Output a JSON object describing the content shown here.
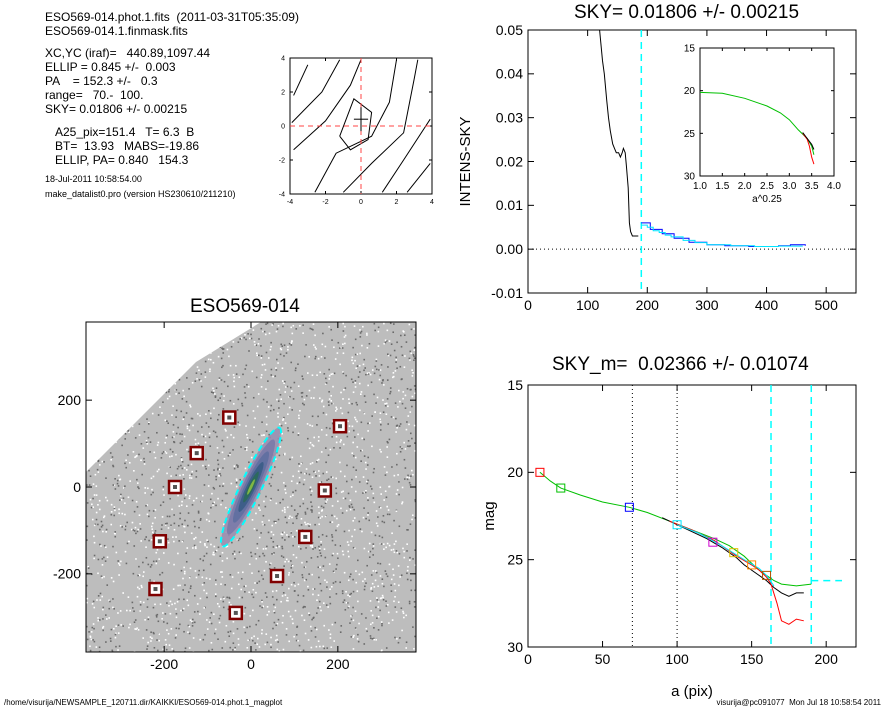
{
  "header": {
    "file_line": "ESO569-014.phot.1.fits  (2011-03-31T05:35:09)",
    "mask_line": "ESO569-014.1.finmask.fits",
    "xcyc": "XC,YC (iraf)=   440.89,1097.44",
    "ellip": "ELLIP = 0.845 +/-  0.003",
    "pa": "PA    = 152.3 +/-   0.3",
    "range": "range=   70.-  100.",
    "sky": "SKY= 0.01806 +/- 0.00215",
    "a25": "A25_pix=151.4   T= 6.3  B",
    "bt": "BT=  13.93   MABS=-19.86",
    "ellip_pa": "ELLIP, PA= 0.840   154.3",
    "date": "18-Jul-2011 10:58:54.00",
    "program": "make_datalist0.pro (version HS230610/211210)"
  },
  "footer": {
    "left": "/home/visurija/NEWSAMPLE_120711.dir/KAIKKI/ESO569-014.phot.1_magplot",
    "right": "visurija@pc091077  Mon Jul 18 10:58:54 2011"
  },
  "colors": {
    "sky_line": "#00ffff",
    "profile_black": "#000000",
    "profile_green": "#00cc00",
    "profile_red": "#ff0000",
    "profile_blue": "#0000ff",
    "marker_red": "#800000"
  },
  "chart_data": [
    {
      "type": "line",
      "panel": "contour-inset",
      "xlim": [
        -4,
        4
      ],
      "ylim": [
        -4,
        4
      ],
      "xticks": [
        "-4",
        "-2",
        "0",
        "2",
        "4"
      ],
      "yticks": [
        "-4",
        "-2",
        "0",
        "2",
        "4"
      ]
    },
    {
      "type": "line",
      "panel": "intensity-profile",
      "title": "SKY= 0.01806 +/- 0.00215",
      "ylabel": "INTENS-SKY",
      "xlim": [
        0,
        550
      ],
      "ylim": [
        -0.01,
        0.05
      ],
      "xticks": [
        "0",
        "100",
        "200",
        "300",
        "400",
        "500"
      ],
      "yticks": [
        "-0.01",
        "0.00",
        "0.01",
        "0.02",
        "0.03",
        "0.04",
        "0.05"
      ],
      "sky_radius": 190,
      "series": [
        {
          "color": "black",
          "x": [
            120,
            125,
            128,
            132,
            135,
            138,
            142,
            145,
            148,
            150,
            152,
            155,
            158,
            160,
            163,
            165,
            168,
            170,
            172,
            175,
            178,
            180,
            185
          ],
          "y": [
            0.05,
            0.043,
            0.04,
            0.034,
            0.03,
            0.027,
            0.024,
            0.023,
            0.022,
            0.022,
            0.022,
            0.021,
            0.022,
            0.023,
            0.022,
            0.019,
            0.014,
            0.006,
            0.004,
            0.003,
            0.003,
            0.003,
            0.003
          ]
        },
        {
          "color": "blue",
          "x": [
            190,
            195,
            205,
            215,
            225,
            235,
            245,
            255,
            270,
            285,
            300,
            330,
            350,
            370,
            400,
            420,
            440,
            465
          ],
          "y": [
            0.006,
            0.006,
            0.0045,
            0.0045,
            0.0035,
            0.0035,
            0.0025,
            0.0025,
            0.0016,
            0.0016,
            0.001,
            0.0008,
            0.0008,
            0.0006,
            0.0006,
            0.0008,
            0.001,
            0.0008
          ]
        },
        {
          "color": "cyan",
          "x": [
            190,
            200,
            210,
            220,
            230,
            240,
            260,
            280,
            300,
            340,
            380,
            420,
            460
          ],
          "y": [
            0.0055,
            0.005,
            0.0042,
            0.0038,
            0.0032,
            0.0028,
            0.002,
            0.0015,
            0.001,
            0.0008,
            0.0006,
            0.0007,
            0.0008
          ]
        }
      ],
      "inset": {
        "xlabel": "a^0.25",
        "xlim": [
          1.0,
          4.0
        ],
        "ylim": [
          15,
          30
        ],
        "xticks": [
          "1.0",
          "1.5",
          "2.0",
          "2.5",
          "3.0",
          "3.5",
          "4.0"
        ],
        "yticks": [
          "15",
          "20",
          "25",
          "30"
        ],
        "series": [
          {
            "color": "green",
            "x": [
              1.0,
              1.5,
              2.0,
              2.5,
              2.8,
              3.0,
              3.2,
              3.4,
              3.5,
              3.55
            ],
            "y": [
              20.2,
              20.3,
              20.9,
              21.8,
              22.6,
              23.4,
              24.6,
              25.6,
              26.5,
              27.5
            ]
          },
          {
            "color": "red",
            "x": [
              3.3,
              3.4,
              3.45,
              3.5,
              3.55
            ],
            "y": [
              25.0,
              25.7,
              26.5,
              27.8,
              28.6
            ]
          },
          {
            "color": "black",
            "x": [
              3.3,
              3.4,
              3.5,
              3.55
            ],
            "y": [
              24.9,
              25.6,
              26.3,
              26.9
            ]
          }
        ]
      }
    },
    {
      "type": "scatter",
      "panel": "galaxy-image",
      "title": "ESO569-014",
      "xlim": [
        -380,
        380
      ],
      "ylim": [
        -380,
        380
      ],
      "xticks": [
        "-200",
        "0",
        "200"
      ],
      "yticks": [
        "-200",
        "0",
        "200"
      ],
      "ellipse": {
        "x": 0,
        "y": 0,
        "semi_major": 151.4,
        "ellipticity": 0.84,
        "pa_deg": 154.3
      },
      "star_markers": [
        {
          "x": -50,
          "y": 160
        },
        {
          "x": 205,
          "y": 140
        },
        {
          "x": -125,
          "y": 78
        },
        {
          "x": -175,
          "y": 0
        },
        {
          "x": 170,
          "y": -8
        },
        {
          "x": -210,
          "y": -125
        },
        {
          "x": 125,
          "y": -115
        },
        {
          "x": 60,
          "y": -205
        },
        {
          "x": -220,
          "y": -235
        },
        {
          "x": -35,
          "y": -290
        }
      ]
    },
    {
      "type": "line",
      "panel": "magnitude-profile",
      "title": "SKY_m=  0.02366 +/- 0.01074",
      "xlabel": "a (pix)",
      "ylabel": "mag",
      "xlim": [
        0,
        220
      ],
      "ylim": [
        30,
        15
      ],
      "xticks": [
        "0",
        "50",
        "100",
        "150",
        "200"
      ],
      "yticks": [
        "15",
        "20",
        "25",
        "30"
      ],
      "dotted_x": [
        70,
        100
      ],
      "dashed_x": [
        163,
        190
      ],
      "sky_mag": 26.2,
      "series": [
        {
          "color": "green",
          "x": [
            8,
            15,
            22,
            35,
            50,
            68,
            80,
            95,
            110,
            125,
            135,
            145,
            150,
            155,
            160,
            165,
            170,
            180,
            190
          ],
          "y": [
            20.0,
            20.5,
            20.9,
            21.3,
            21.7,
            22.0,
            22.3,
            22.8,
            23.3,
            23.8,
            24.2,
            24.8,
            25.2,
            25.6,
            25.9,
            26.2,
            26.4,
            26.5,
            26.4
          ]
        },
        {
          "color": "black",
          "x": [
            90,
            100,
            110,
            120,
            130,
            140,
            145,
            150,
            155,
            160,
            165,
            170,
            175,
            180,
            185
          ],
          "y": [
            22.6,
            23.0,
            23.4,
            23.8,
            24.3,
            24.9,
            25.3,
            25.6,
            25.9,
            26.2,
            26.6,
            26.9,
            27.1,
            26.9,
            26.9
          ]
        },
        {
          "color": "red",
          "x": [
            95,
            110,
            125,
            140,
            150,
            155,
            160,
            163,
            167,
            170,
            175,
            180,
            185
          ],
          "y": [
            22.8,
            23.3,
            23.9,
            24.8,
            25.3,
            25.6,
            26.0,
            26.4,
            27.5,
            28.5,
            28.7,
            28.4,
            28.5
          ]
        },
        {
          "color": "cyan",
          "x": [
            100,
            115,
            130,
            145,
            155,
            160,
            165
          ],
          "y": [
            23.0,
            23.5,
            24.2,
            25.0,
            25.5,
            25.9,
            26.5
          ]
        }
      ],
      "markers": [
        {
          "color": "red",
          "x": 8,
          "y": 20.0
        },
        {
          "color": "green",
          "x": 22,
          "y": 20.9
        },
        {
          "color": "blue",
          "x": 68,
          "y": 22.0
        },
        {
          "color": "cyan",
          "x": 100,
          "y": 23.0
        },
        {
          "color": "magenta",
          "x": 124,
          "y": 24.0
        },
        {
          "color": "yellow",
          "x": 138,
          "y": 24.6
        },
        {
          "color": "orange",
          "x": 150,
          "y": 25.3
        },
        {
          "color": "brown",
          "x": 160,
          "y": 25.9
        }
      ]
    }
  ]
}
